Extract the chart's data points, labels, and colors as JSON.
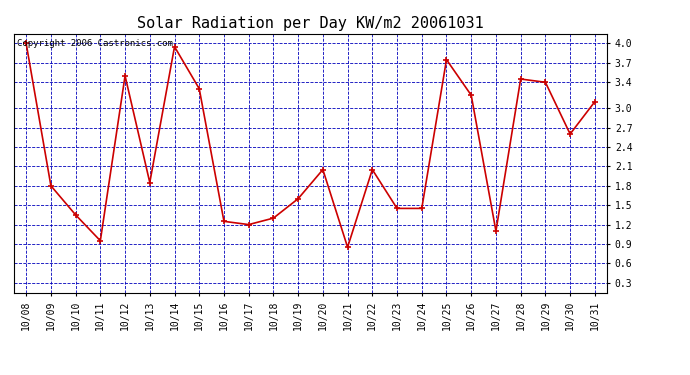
{
  "title": "Solar Radiation per Day KW/m2 20061031",
  "copyright_text": "Copyright 2006 Castronics.com",
  "dates": [
    "10/08",
    "10/09",
    "10/10",
    "10/11",
    "10/12",
    "10/13",
    "10/14",
    "10/15",
    "10/16",
    "10/17",
    "10/18",
    "10/19",
    "10/20",
    "10/21",
    "10/22",
    "10/23",
    "10/24",
    "10/25",
    "10/26",
    "10/27",
    "10/28",
    "10/29",
    "10/30",
    "10/31"
  ],
  "values": [
    4.0,
    1.8,
    1.35,
    0.95,
    3.5,
    1.85,
    3.95,
    3.3,
    1.25,
    1.2,
    1.3,
    1.6,
    2.05,
    0.85,
    2.05,
    1.45,
    1.45,
    3.75,
    3.2,
    1.1,
    3.45,
    3.4,
    2.6,
    3.1
  ],
  "line_color": "#cc0000",
  "marker_color": "#cc0000",
  "bg_color": "#ffffff",
  "plot_bg_color": "#ffffff",
  "grid_color": "#0000bb",
  "title_color": "#000000",
  "copyright_color": "#000000",
  "ylim": [
    0.15,
    4.15
  ],
  "yticks": [
    0.3,
    0.6,
    0.9,
    1.2,
    1.5,
    1.8,
    2.1,
    2.4,
    2.7,
    3.0,
    3.4,
    3.7,
    4.0
  ],
  "title_fontsize": 11,
  "copyright_fontsize": 6.5,
  "tick_fontsize": 7,
  "marker_size": 5,
  "linewidth": 1.2
}
